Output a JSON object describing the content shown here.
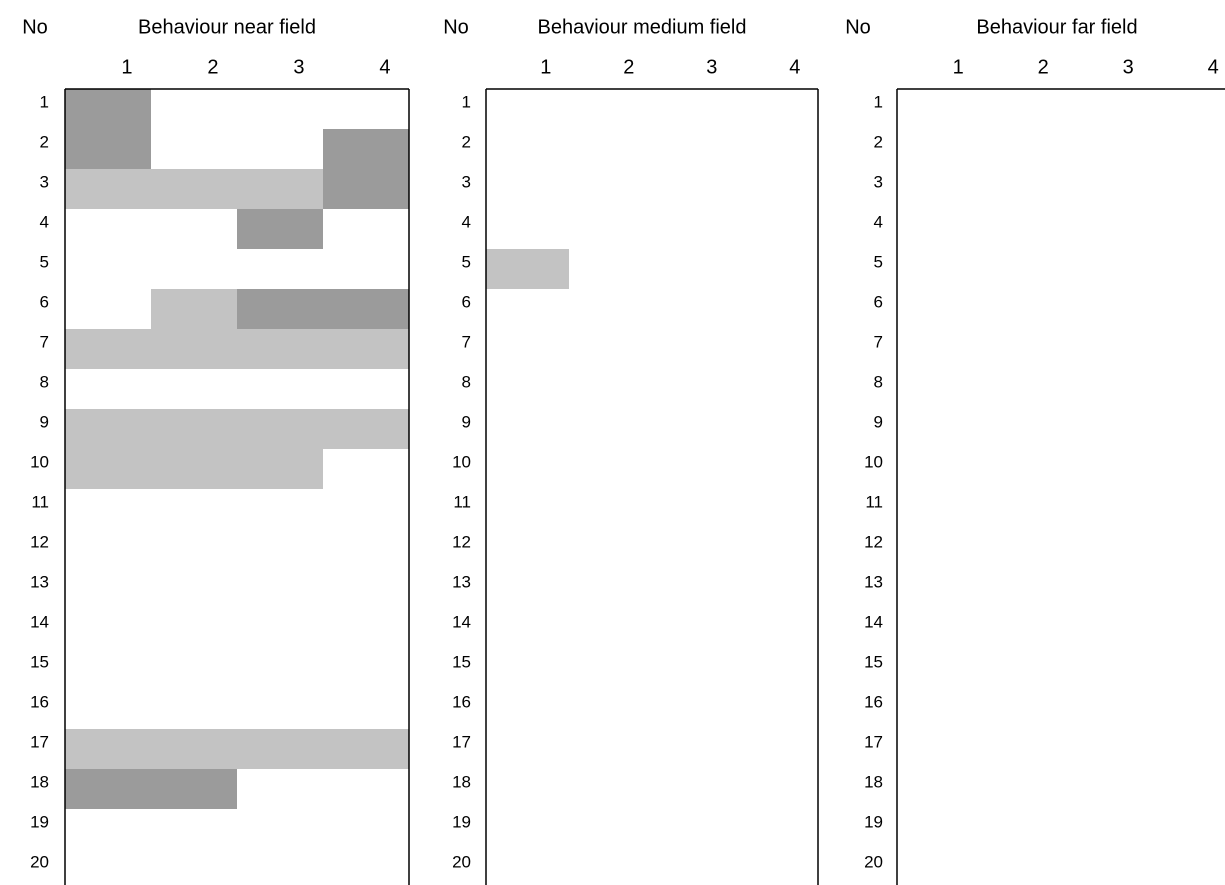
{
  "panels": [
    {
      "no_label": "No",
      "title": "Behaviour near field",
      "columns": [
        "1",
        "2",
        "3",
        "4"
      ],
      "rows": [
        {
          "label": "1",
          "cells": [
            "#9b9b9b",
            null,
            null,
            null
          ]
        },
        {
          "label": "2",
          "cells": [
            "#9b9b9b",
            null,
            null,
            "#9b9b9b"
          ]
        },
        {
          "label": "3",
          "cells": [
            "#c3c3c3",
            "#c3c3c3",
            "#c3c3c3",
            "#9b9b9b"
          ]
        },
        {
          "label": "4",
          "cells": [
            null,
            null,
            "#9b9b9b",
            null
          ]
        },
        {
          "label": "5",
          "cells": [
            null,
            null,
            null,
            null
          ]
        },
        {
          "label": "6",
          "cells": [
            null,
            "#c3c3c3",
            "#9b9b9b",
            "#9b9b9b"
          ]
        },
        {
          "label": "7",
          "cells": [
            "#c3c3c3",
            "#c3c3c3",
            "#c3c3c3",
            "#c3c3c3"
          ]
        },
        {
          "label": "8",
          "cells": [
            null,
            null,
            null,
            null
          ]
        },
        {
          "label": "9",
          "cells": [
            "#c3c3c3",
            "#c3c3c3",
            "#c3c3c3",
            "#c3c3c3"
          ]
        },
        {
          "label": "10",
          "cells": [
            "#c3c3c3",
            "#c3c3c3",
            "#c3c3c3",
            null
          ]
        },
        {
          "label": "11",
          "cells": [
            null,
            null,
            null,
            null
          ]
        },
        {
          "label": "12",
          "cells": [
            null,
            null,
            null,
            null
          ]
        },
        {
          "label": "13",
          "cells": [
            null,
            null,
            null,
            null
          ]
        },
        {
          "label": "14",
          "cells": [
            null,
            null,
            null,
            null
          ]
        },
        {
          "label": "15",
          "cells": [
            null,
            null,
            null,
            null
          ]
        },
        {
          "label": "16",
          "cells": [
            null,
            null,
            null,
            null
          ]
        },
        {
          "label": "17",
          "cells": [
            "#c3c3c3",
            "#c3c3c3",
            "#c3c3c3",
            "#c3c3c3"
          ]
        },
        {
          "label": "18",
          "cells": [
            "#9b9b9b",
            "#9b9b9b",
            null,
            null
          ]
        },
        {
          "label": "19",
          "cells": [
            null,
            null,
            null,
            null
          ]
        },
        {
          "label": "20",
          "cells": [
            null,
            null,
            null,
            null
          ]
        }
      ]
    },
    {
      "no_label": "No",
      "title": "Behaviour medium field",
      "columns": [
        "1",
        "2",
        "3",
        "4"
      ],
      "rows": [
        {
          "label": "1",
          "cells": [
            null,
            null,
            null,
            null
          ]
        },
        {
          "label": "2",
          "cells": [
            null,
            null,
            null,
            null
          ]
        },
        {
          "label": "3",
          "cells": [
            null,
            null,
            null,
            null
          ]
        },
        {
          "label": "4",
          "cells": [
            null,
            null,
            null,
            null
          ]
        },
        {
          "label": "5",
          "cells": [
            "#c3c3c3",
            null,
            null,
            null
          ]
        },
        {
          "label": "6",
          "cells": [
            null,
            null,
            null,
            null
          ]
        },
        {
          "label": "7",
          "cells": [
            null,
            null,
            null,
            null
          ]
        },
        {
          "label": "8",
          "cells": [
            null,
            null,
            null,
            null
          ]
        },
        {
          "label": "9",
          "cells": [
            null,
            null,
            null,
            null
          ]
        },
        {
          "label": "10",
          "cells": [
            null,
            null,
            null,
            null
          ]
        },
        {
          "label": "11",
          "cells": [
            null,
            null,
            null,
            null
          ]
        },
        {
          "label": "12",
          "cells": [
            null,
            null,
            null,
            null
          ]
        },
        {
          "label": "13",
          "cells": [
            null,
            null,
            null,
            null
          ]
        },
        {
          "label": "14",
          "cells": [
            null,
            null,
            null,
            null
          ]
        },
        {
          "label": "15",
          "cells": [
            null,
            null,
            null,
            null
          ]
        },
        {
          "label": "16",
          "cells": [
            null,
            null,
            null,
            null
          ]
        },
        {
          "label": "17",
          "cells": [
            null,
            null,
            null,
            null
          ]
        },
        {
          "label": "18",
          "cells": [
            null,
            null,
            null,
            null
          ]
        },
        {
          "label": "19",
          "cells": [
            null,
            null,
            null,
            null
          ]
        },
        {
          "label": "20",
          "cells": [
            null,
            null,
            null,
            null
          ]
        }
      ]
    },
    {
      "no_label": "No",
      "title": "Behaviour far field",
      "columns": [
        "1",
        "2",
        "3",
        "4"
      ],
      "rows": [
        {
          "label": "1",
          "cells": [
            null,
            null,
            null,
            null
          ]
        },
        {
          "label": "2",
          "cells": [
            null,
            null,
            null,
            null
          ]
        },
        {
          "label": "3",
          "cells": [
            null,
            null,
            null,
            null
          ]
        },
        {
          "label": "4",
          "cells": [
            null,
            null,
            null,
            null
          ]
        },
        {
          "label": "5",
          "cells": [
            null,
            null,
            null,
            null
          ]
        },
        {
          "label": "6",
          "cells": [
            null,
            null,
            null,
            null
          ]
        },
        {
          "label": "7",
          "cells": [
            null,
            null,
            null,
            null
          ]
        },
        {
          "label": "8",
          "cells": [
            null,
            null,
            null,
            null
          ]
        },
        {
          "label": "9",
          "cells": [
            null,
            null,
            null,
            null
          ]
        },
        {
          "label": "10",
          "cells": [
            null,
            null,
            null,
            null
          ]
        },
        {
          "label": "11",
          "cells": [
            null,
            null,
            null,
            null
          ]
        },
        {
          "label": "12",
          "cells": [
            null,
            null,
            null,
            null
          ]
        },
        {
          "label": "13",
          "cells": [
            null,
            null,
            null,
            null
          ]
        },
        {
          "label": "14",
          "cells": [
            null,
            null,
            null,
            null
          ]
        },
        {
          "label": "15",
          "cells": [
            null,
            null,
            null,
            null
          ]
        },
        {
          "label": "16",
          "cells": [
            null,
            null,
            null,
            null
          ]
        },
        {
          "label": "17",
          "cells": [
            null,
            null,
            null,
            null
          ]
        },
        {
          "label": "18",
          "cells": [
            null,
            null,
            null,
            null
          ]
        },
        {
          "label": "19",
          "cells": [
            null,
            null,
            null,
            null
          ]
        },
        {
          "label": "20",
          "cells": [
            null,
            null,
            null,
            null
          ]
        }
      ]
    }
  ]
}
